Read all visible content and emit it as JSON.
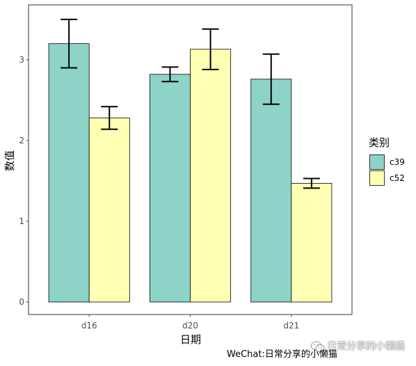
{
  "chart_data": {
    "type": "bar",
    "xlabel": "日期",
    "ylabel": "数值",
    "categories": [
      "d16",
      "d20",
      "d21"
    ],
    "series": [
      {
        "name": "c39",
        "color": "#8DD3C7",
        "values": [
          3.2,
          2.82,
          2.76
        ],
        "errors": [
          0.3,
          0.09,
          0.31
        ]
      },
      {
        "name": "c52",
        "color": "#FFFFB3",
        "values": [
          2.28,
          3.13,
          1.47
        ],
        "errors": [
          0.14,
          0.25,
          0.06
        ]
      }
    ],
    "yticks": [
      0,
      1,
      2,
      3
    ],
    "ylim": [
      -0.155,
      3.68
    ],
    "grid": false,
    "legend": {
      "title": "类别",
      "position": "right"
    }
  },
  "caption": {
    "text": "WeChat:日常分享的小懒猫"
  },
  "watermark": {
    "text": "日常分享的小懒猫",
    "icon": "wechat-icon"
  }
}
